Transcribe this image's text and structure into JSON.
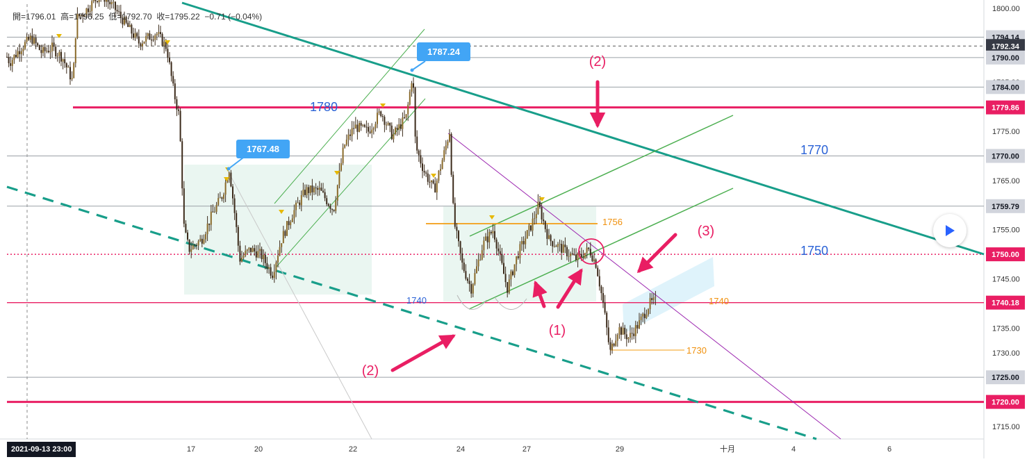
{
  "ohlc": {
    "open_label": "開",
    "open": "1796.01",
    "high_label": "高",
    "high": "1796.25",
    "low_label": "低",
    "low": "1792.70",
    "close_label": "收",
    "close": "1795.22",
    "change": "−0.71",
    "change_pct": "(−0.04%)"
  },
  "chart_data": {
    "type": "candlestick",
    "y_axis": {
      "range": [
        1711.5,
        1801.5
      ],
      "ticks": [
        "1800.00",
        "1795.00",
        "1790.00",
        "1785.00",
        "1780.00",
        "1775.00",
        "1770.00",
        "1765.00",
        "1760.00",
        "1755.00",
        "1750.00",
        "1745.00",
        "1740.00",
        "1735.00",
        "1730.00",
        "1725.00",
        "1720.00",
        "1715.00"
      ]
    },
    "x_axis": {
      "ticks": [
        "17",
        "20",
        "22",
        "24",
        "27",
        "29",
        "十月",
        "4",
        "6"
      ],
      "date_badge": "2021-09-13   23:00"
    },
    "price_badges": [
      {
        "value": "1794.14",
        "kind": "gray"
      },
      {
        "value": "1792.34",
        "kind": "dark"
      },
      {
        "value": "1790.00",
        "kind": "gray"
      },
      {
        "value": "1784.00",
        "kind": "gray"
      },
      {
        "value": "1779.86",
        "kind": "pink"
      },
      {
        "value": "1770.00",
        "kind": "gray"
      },
      {
        "value": "1759.79",
        "kind": "gray"
      },
      {
        "value": "1750.00",
        "kind": "pink"
      },
      {
        "value": "1740.18",
        "kind": "pink"
      },
      {
        "value": "1725.00",
        "kind": "gray"
      },
      {
        "value": "1720.00",
        "kind": "pink"
      }
    ],
    "callouts": [
      {
        "text": "1787.24",
        "price": 1787.24
      },
      {
        "text": "1767.48",
        "price": 1767.48
      }
    ],
    "level_labels": [
      {
        "text": "1780",
        "price": 1780,
        "color": "#2a62d6"
      },
      {
        "text": "1770",
        "price": 1770,
        "color": "#2a62d6"
      },
      {
        "text": "1750",
        "price": 1750,
        "color": "#2a62d6"
      },
      {
        "text": "1740",
        "price": 1740,
        "color": "#2a62d6"
      },
      {
        "text": "1756",
        "price": 1756,
        "color": "#f0900c"
      },
      {
        "text": "1740",
        "price": 1740,
        "color": "#f0900c"
      },
      {
        "text": "1730",
        "price": 1730,
        "color": "#f0900c"
      }
    ],
    "wave_labels": [
      "(2)",
      "(2)",
      "(1)",
      "(3)"
    ],
    "price_path": [
      [
        0,
        1793
      ],
      [
        14,
        1789
      ],
      [
        30,
        1792
      ],
      [
        45,
        1794
      ],
      [
        60,
        1791
      ],
      [
        75,
        1792
      ],
      [
        90,
        1790
      ],
      [
        105,
        1785
      ],
      [
        110,
        1798
      ],
      [
        120,
        1799
      ],
      [
        145,
        1803
      ],
      [
        165,
        1800
      ],
      [
        180,
        1797
      ],
      [
        200,
        1793
      ],
      [
        225,
        1795
      ],
      [
        240,
        1792
      ],
      [
        250,
        1783
      ],
      [
        258,
        1778
      ],
      [
        265,
        1755
      ],
      [
        272,
        1751
      ],
      [
        290,
        1753
      ],
      [
        305,
        1758
      ],
      [
        320,
        1762
      ],
      [
        330,
        1767.5
      ],
      [
        338,
        1758
      ],
      [
        345,
        1749
      ],
      [
        360,
        1751
      ],
      [
        375,
        1750
      ],
      [
        392,
        1746
      ],
      [
        405,
        1753
      ],
      [
        420,
        1758
      ],
      [
        440,
        1763
      ],
      [
        460,
        1763
      ],
      [
        480,
        1759
      ],
      [
        495,
        1772
      ],
      [
        510,
        1776
      ],
      [
        530,
        1775
      ],
      [
        548,
        1779
      ],
      [
        565,
        1774
      ],
      [
        585,
        1778
      ],
      [
        594,
        1787.2
      ],
      [
        598,
        1772
      ],
      [
        610,
        1767
      ],
      [
        625,
        1763
      ],
      [
        640,
        1771
      ],
      [
        647,
        1775
      ],
      [
        653,
        1757
      ],
      [
        665,
        1748
      ],
      [
        678,
        1743
      ],
      [
        695,
        1752
      ],
      [
        710,
        1755
      ],
      [
        730,
        1743
      ],
      [
        745,
        1750
      ],
      [
        765,
        1756
      ],
      [
        775,
        1760
      ],
      [
        790,
        1753
      ],
      [
        810,
        1751
      ],
      [
        830,
        1749
      ],
      [
        848,
        1751
      ],
      [
        858,
        1748
      ],
      [
        868,
        1740
      ],
      [
        878,
        1730
      ],
      [
        890,
        1735
      ],
      [
        905,
        1733
      ],
      [
        920,
        1736
      ],
      [
        935,
        1740
      ],
      [
        945,
        1740.5
      ]
    ]
  }
}
